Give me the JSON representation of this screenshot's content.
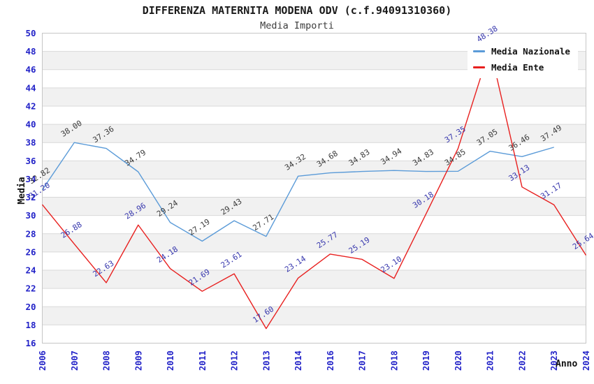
{
  "header": {
    "title": "DIFFERENZA MATERNITA MODENA ODV (c.f.94091310360)",
    "subtitle": "Media Importi"
  },
  "chart_data": {
    "type": "line",
    "title": "DIFFERENZA MATERNITA MODENA ODV (c.f.94091310360)",
    "subtitle": "Media Importi",
    "xlabel": "Anno",
    "ylabel": "Media",
    "ylim": [
      16,
      50
    ],
    "ytick_step": 2,
    "grid": true,
    "legend_position": "top-right",
    "categories": [
      "2006",
      "2007",
      "2008",
      "2009",
      "2010",
      "2011",
      "2012",
      "2013",
      "2014",
      "2016",
      "2017",
      "2018",
      "2019",
      "2020",
      "2021",
      "2022",
      "2023",
      "2024"
    ],
    "series": [
      {
        "name": "Media Nazionale",
        "color": "#5b9bd8",
        "label_color": "#3a3a3a",
        "values": [
          32.82,
          38.0,
          37.36,
          34.79,
          29.24,
          27.19,
          29.43,
          27.71,
          34.32,
          34.68,
          34.83,
          34.94,
          34.83,
          34.85,
          37.05,
          36.46,
          37.49,
          null
        ]
      },
      {
        "name": "Media Ente",
        "color": "#e8201f",
        "label_color": "#3737ad",
        "values": [
          31.2,
          26.88,
          22.63,
          28.96,
          24.18,
          21.69,
          23.61,
          17.6,
          23.14,
          25.77,
          25.19,
          23.1,
          30.18,
          37.35,
          48.38,
          33.13,
          31.17,
          25.64
        ]
      }
    ],
    "colors": {
      "tick_label": "#2323c8",
      "axis_label": "#111111",
      "grid_line": "#d9d9d9",
      "band_fill": "#f1f1f1",
      "plot_border": "#c6c6c6",
      "legend_bg": "#ffffff",
      "background": "#ffffff"
    }
  }
}
